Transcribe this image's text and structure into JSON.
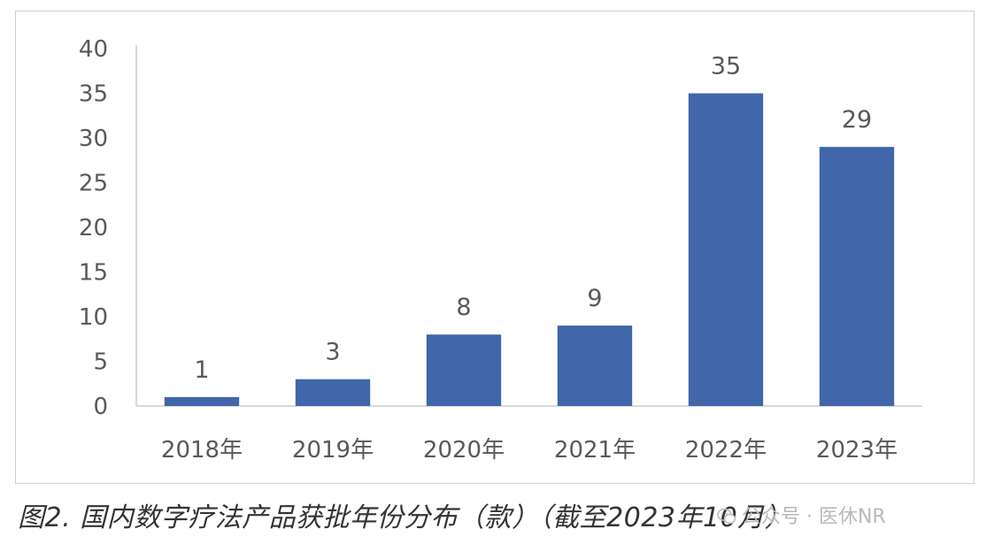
{
  "chart_data": {
    "type": "bar",
    "categories": [
      "2018年",
      "2019年",
      "2020年",
      "2021年",
      "2022年",
      "2023年"
    ],
    "values": [
      1,
      3,
      8,
      9,
      35,
      29
    ],
    "data_labels": [
      "1",
      "3",
      "8",
      "9",
      "35",
      "29"
    ],
    "y_ticks": [
      0,
      5,
      10,
      15,
      20,
      25,
      30,
      35,
      40
    ],
    "ylim": [
      0,
      40
    ],
    "grid": false,
    "legend": "none",
    "bar_color": "#4166AA"
  },
  "caption": "图2. 国内数字疗法产品获批年份分布（款）（截至2023年10月）",
  "watermark": {
    "text": "公众号 · 医休NR",
    "icon": "wechat-icon"
  },
  "colors": {
    "axis": "#d9d9d9",
    "text": "#595959",
    "caption": "#333333"
  }
}
